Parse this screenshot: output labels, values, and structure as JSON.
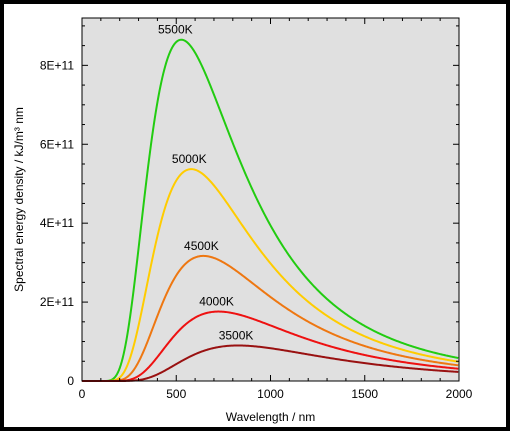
{
  "chart_data": {
    "type": "line",
    "title": "",
    "xlabel": "Wavelength / nm",
    "ylabel": "Spectral energy density / kJ/m³ nm",
    "xlim": [
      0,
      2000
    ],
    "ylim": [
      0,
      920000000000.0
    ],
    "grid": false,
    "background_color": "#e0e0e0",
    "x_ticks": [
      {
        "value": 0,
        "label": "0"
      },
      {
        "value": 500,
        "label": "500"
      },
      {
        "value": 1000,
        "label": "1000"
      },
      {
        "value": 1500,
        "label": "1500"
      },
      {
        "value": 2000,
        "label": "2000"
      }
    ],
    "y_ticks": [
      {
        "value": 0,
        "label": "0"
      },
      {
        "value": 200000000000.0,
        "label": "2E+11"
      },
      {
        "value": 400000000000.0,
        "label": "4E+11"
      },
      {
        "value": 600000000000.0,
        "label": "6E+11"
      },
      {
        "value": 800000000000.0,
        "label": "8E+11"
      }
    ],
    "series": [
      {
        "name": "5500K",
        "temperature_K": 5500,
        "color": "#22cc11",
        "peak": {
          "x": 527,
          "y": 865000000000.0
        }
      },
      {
        "name": "5000K",
        "temperature_K": 5000,
        "color": "#ffcc00",
        "peak": {
          "x": 580,
          "y": 537000000000.0
        }
      },
      {
        "name": "4500K",
        "temperature_K": 4500,
        "color": "#ee7711",
        "peak": {
          "x": 644,
          "y": 317000000000.0
        }
      },
      {
        "name": "4000K",
        "temperature_K": 4000,
        "color": "#ee1111",
        "peak": {
          "x": 725,
          "y": 176000000000.0
        }
      },
      {
        "name": "3500K",
        "temperature_K": 3500,
        "color": "#991111",
        "peak": {
          "x": 828,
          "y": 90000000000.0
        }
      }
    ]
  }
}
